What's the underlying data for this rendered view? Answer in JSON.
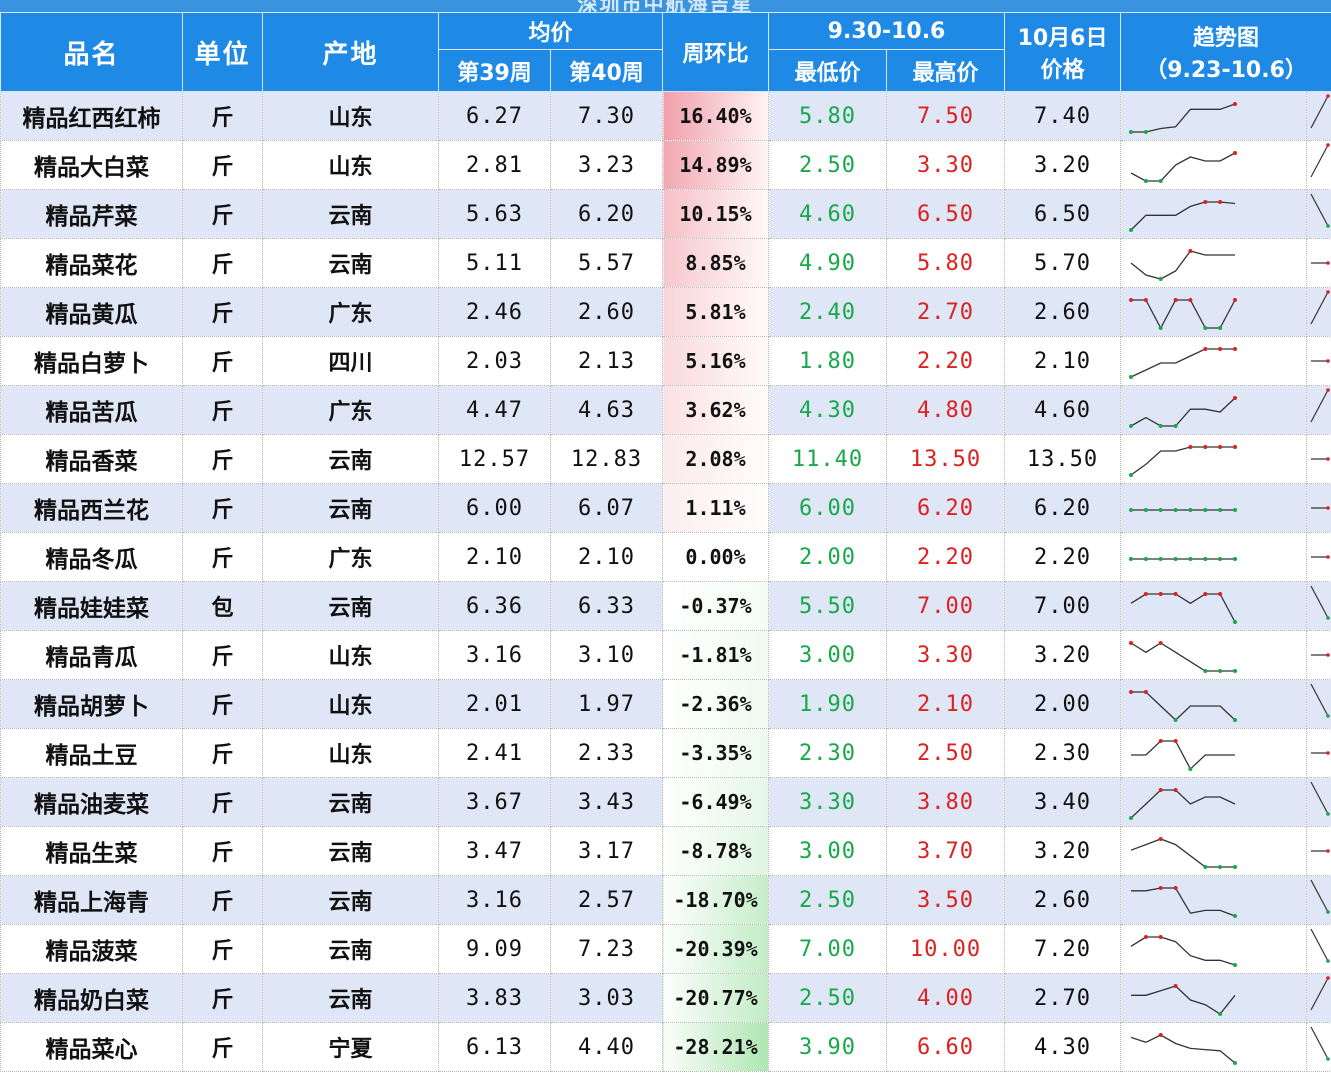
{
  "title": "深圳市中航海吉星",
  "headers": {
    "name": "品名",
    "unit": "单位",
    "origin": "产地",
    "avg_price": "均价",
    "week39": "第39周",
    "week40": "第40周",
    "wow": "周环比",
    "range": "9.30-10.6",
    "low": "最低价",
    "high": "最高价",
    "date_line1": "10月6日",
    "date_line2": "价格",
    "trend_line1": "趋势图",
    "trend_line2": "（9.23-10.6）"
  },
  "rows": [
    {
      "name": "精品红西红柿",
      "unit": "斤",
      "origin": "山东",
      "w39": "6.27",
      "w40": "7.30",
      "wow": "16.40%",
      "wow_value": 16.4,
      "low": "5.80",
      "high": "7.50",
      "price": "7.40",
      "trend": [
        5.8,
        5.8,
        6.0,
        6.1,
        7.1,
        7.1,
        7.1,
        7.4
      ]
    },
    {
      "name": "精品大白菜",
      "unit": "斤",
      "origin": "山东",
      "w39": "2.81",
      "w40": "3.23",
      "wow": "14.89%",
      "wow_value": 14.89,
      "low": "2.50",
      "high": "3.30",
      "price": "3.20",
      "trend": [
        2.7,
        2.5,
        2.5,
        2.9,
        3.1,
        3.0,
        3.0,
        3.2
      ]
    },
    {
      "name": "精品芹菜",
      "unit": "斤",
      "origin": "云南",
      "w39": "5.63",
      "w40": "6.20",
      "wow": "10.15%",
      "wow_value": 10.15,
      "low": "4.60",
      "high": "6.50",
      "price": "6.50",
      "trend": [
        4.6,
        5.6,
        5.6,
        5.6,
        6.2,
        6.5,
        6.5,
        6.4
      ]
    },
    {
      "name": "精品菜花",
      "unit": "斤",
      "origin": "云南",
      "w39": "5.11",
      "w40": "5.57",
      "wow": "8.85%",
      "wow_value": 8.85,
      "low": "4.90",
      "high": "5.80",
      "price": "5.70",
      "trend": [
        5.3,
        5.0,
        4.9,
        5.1,
        5.6,
        5.5,
        5.5,
        5.5
      ]
    },
    {
      "name": "精品黄瓜",
      "unit": "斤",
      "origin": "广东",
      "w39": "2.46",
      "w40": "2.60",
      "wow": "5.81%",
      "wow_value": 5.81,
      "low": "2.40",
      "high": "2.70",
      "price": "2.60",
      "trend": [
        2.6,
        2.6,
        2.4,
        2.6,
        2.6,
        2.4,
        2.4,
        2.6
      ]
    },
    {
      "name": "精品白萝卜",
      "unit": "斤",
      "origin": "四川",
      "w39": "2.03",
      "w40": "2.13",
      "wow": "5.16%",
      "wow_value": 5.16,
      "low": "1.80",
      "high": "2.20",
      "price": "2.10",
      "trend": [
        1.8,
        1.9,
        2.0,
        2.0,
        2.1,
        2.2,
        2.2,
        2.2
      ]
    },
    {
      "name": "精品苦瓜",
      "unit": "斤",
      "origin": "广东",
      "w39": "4.47",
      "w40": "4.63",
      "wow": "3.62%",
      "wow_value": 3.62,
      "low": "4.30",
      "high": "4.80",
      "price": "4.60",
      "trend": [
        4.3,
        4.45,
        4.3,
        4.3,
        4.6,
        4.6,
        4.55,
        4.8
      ]
    },
    {
      "name": "精品香菜",
      "unit": "斤",
      "origin": "云南",
      "w39": "12.57",
      "w40": "12.83",
      "wow": "2.08%",
      "wow_value": 2.08,
      "low": "11.40",
      "high": "13.50",
      "price": "13.50",
      "trend": [
        11.4,
        12.2,
        13.2,
        13.2,
        13.5,
        13.5,
        13.5,
        13.5
      ]
    },
    {
      "name": "精品西兰花",
      "unit": "斤",
      "origin": "云南",
      "w39": "6.00",
      "w40": "6.07",
      "wow": "1.11%",
      "wow_value": 1.11,
      "low": "6.00",
      "high": "6.20",
      "price": "6.20",
      "trend": [
        6.0,
        6.0,
        6.0,
        6.0,
        6.0,
        6.0,
        6.0,
        6.0
      ]
    },
    {
      "name": "精品冬瓜",
      "unit": "斤",
      "origin": "广东",
      "w39": "2.10",
      "w40": "2.10",
      "wow": "0.00%",
      "wow_value": 0.0,
      "low": "2.00",
      "high": "2.20",
      "price": "2.20",
      "trend": [
        2.1,
        2.1,
        2.1,
        2.1,
        2.1,
        2.1,
        2.1,
        2.1
      ]
    },
    {
      "name": "精品娃娃菜",
      "unit": "包",
      "origin": "云南",
      "w39": "6.36",
      "w40": "6.33",
      "wow": "-0.37%",
      "wow_value": -0.37,
      "low": "5.50",
      "high": "7.00",
      "price": "7.00",
      "trend": [
        6.5,
        7.0,
        7.0,
        7.0,
        6.5,
        7.0,
        7.0,
        5.5
      ]
    },
    {
      "name": "精品青瓜",
      "unit": "斤",
      "origin": "山东",
      "w39": "3.16",
      "w40": "3.10",
      "wow": "-1.81%",
      "wow_value": -1.81,
      "low": "3.00",
      "high": "3.30",
      "price": "3.20",
      "trend": [
        3.3,
        3.2,
        3.3,
        3.2,
        3.1,
        3.0,
        3.0,
        3.0
      ]
    },
    {
      "name": "精品胡萝卜",
      "unit": "斤",
      "origin": "山东",
      "w39": "2.01",
      "w40": "1.97",
      "wow": "-2.36%",
      "wow_value": -2.36,
      "low": "1.90",
      "high": "2.10",
      "price": "2.00",
      "trend": [
        2.1,
        2.1,
        2.0,
        1.9,
        2.0,
        2.0,
        2.0,
        1.9
      ]
    },
    {
      "name": "精品土豆",
      "unit": "斤",
      "origin": "山东",
      "w39": "2.41",
      "w40": "2.33",
      "wow": "-3.35%",
      "wow_value": -3.35,
      "low": "2.30",
      "high": "2.50",
      "price": "2.30",
      "trend": [
        2.4,
        2.4,
        2.5,
        2.5,
        2.3,
        2.4,
        2.4,
        2.4
      ]
    },
    {
      "name": "精品油麦菜",
      "unit": "斤",
      "origin": "云南",
      "w39": "3.67",
      "w40": "3.43",
      "wow": "-6.49%",
      "wow_value": -6.49,
      "low": "3.30",
      "high": "3.80",
      "price": "3.40",
      "trend": [
        3.4,
        3.6,
        3.8,
        3.8,
        3.6,
        3.7,
        3.7,
        3.6
      ]
    },
    {
      "name": "精品生菜",
      "unit": "斤",
      "origin": "云南",
      "w39": "3.47",
      "w40": "3.17",
      "wow": "-8.78%",
      "wow_value": -8.78,
      "low": "3.00",
      "high": "3.70",
      "price": "3.20",
      "trend": [
        3.5,
        3.6,
        3.7,
        3.6,
        3.4,
        3.2,
        3.2,
        3.2
      ]
    },
    {
      "name": "精品上海青",
      "unit": "斤",
      "origin": "云南",
      "w39": "3.16",
      "w40": "2.57",
      "wow": "-18.70%",
      "wow_value": -18.7,
      "low": "2.50",
      "high": "3.50",
      "price": "2.60",
      "trend": [
        3.4,
        3.4,
        3.5,
        3.5,
        2.6,
        2.7,
        2.7,
        2.5
      ]
    },
    {
      "name": "精品菠菜",
      "unit": "斤",
      "origin": "云南",
      "w39": "9.09",
      "w40": "7.23",
      "wow": "-20.39%",
      "wow_value": -20.39,
      "low": "7.00",
      "high": "10.00",
      "price": "7.20",
      "trend": [
        9.0,
        10.0,
        10.0,
        9.5,
        8.0,
        7.5,
        7.5,
        7.0
      ]
    },
    {
      "name": "精品奶白菜",
      "unit": "斤",
      "origin": "云南",
      "w39": "3.83",
      "w40": "3.03",
      "wow": "-20.77%",
      "wow_value": -20.77,
      "low": "2.50",
      "high": "4.00",
      "price": "2.70",
      "trend": [
        3.7,
        3.7,
        3.8,
        3.9,
        3.6,
        3.5,
        3.3,
        3.7
      ]
    },
    {
      "name": "精品菜心",
      "unit": "斤",
      "origin": "宁夏",
      "w39": "6.13",
      "w40": "4.40",
      "wow": "-28.21%",
      "wow_value": -28.21,
      "low": "3.90",
      "high": "6.60",
      "price": "4.30",
      "trend": [
        6.4,
        6.0,
        6.6,
        5.9,
        5.5,
        5.4,
        5.3,
        4.3
      ]
    }
  ],
  "colors": {
    "header_bg": "#1e8ae6",
    "row_alt": "#dfe7f7",
    "low_text": "#17a84a",
    "high_text": "#dd2020",
    "pct_positive": "#f0a7ad",
    "pct_negative": "#a3e2a9"
  }
}
